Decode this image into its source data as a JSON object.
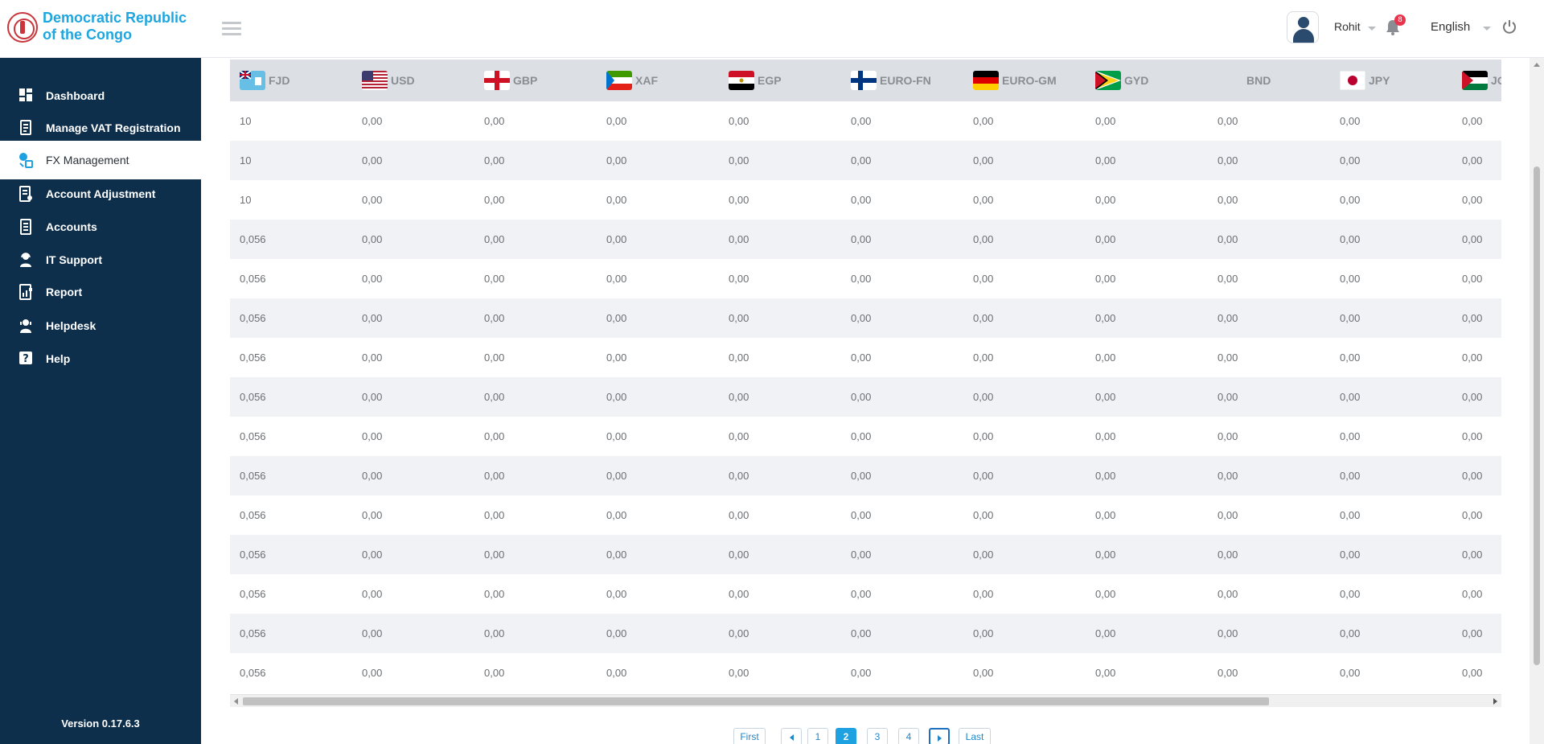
{
  "brand": {
    "name": "Democratic Republic of the Congo",
    "icon": "congo-emblem-icon"
  },
  "sidebar": {
    "items": [
      {
        "label": "Dashboard",
        "icon": "dashboard-icon",
        "active": false
      },
      {
        "label": "Manage VAT Registration",
        "icon": "vat-registration-icon",
        "active": false
      },
      {
        "label": "FX Management",
        "icon": "fx-management-icon",
        "active": true
      },
      {
        "label": "Account Adjustment",
        "icon": "account-adjustment-icon",
        "active": false
      },
      {
        "label": "Accounts",
        "icon": "accounts-icon",
        "active": false
      },
      {
        "label": "IT Support",
        "icon": "it-support-icon",
        "active": false
      },
      {
        "label": "Report",
        "icon": "report-icon",
        "active": false
      },
      {
        "label": "Helpdesk",
        "icon": "helpdesk-icon",
        "active": false
      },
      {
        "label": "Help",
        "icon": "help-icon",
        "active": false
      }
    ],
    "version": "Version 0.17.6.3"
  },
  "header": {
    "user_name": "Rohit",
    "notifications_count": "8",
    "language": "English"
  },
  "colors": {
    "sidebar_bg": "#0d2f4c",
    "brand_text": "#1ea6e0",
    "accent": "#1ea1e0",
    "table_header_bg": "#dcdfe3"
  },
  "table": {
    "columns": [
      "FJD",
      "USD",
      "GBP",
      "XAF",
      "EGP",
      "EURO-FN",
      "EURO-GM",
      "GYD",
      "BND",
      "JPY",
      "JO"
    ],
    "rows": [
      [
        "10",
        "0,00",
        "0,00",
        "0,00",
        "0,00",
        "0,00",
        "0,00",
        "0,00",
        "0,00",
        "0,00",
        "0,00"
      ],
      [
        "10",
        "0,00",
        "0,00",
        "0,00",
        "0,00",
        "0,00",
        "0,00",
        "0,00",
        "0,00",
        "0,00",
        "0,00"
      ],
      [
        "10",
        "0,00",
        "0,00",
        "0,00",
        "0,00",
        "0,00",
        "0,00",
        "0,00",
        "0,00",
        "0,00",
        "0,00"
      ],
      [
        "0,056",
        "0,00",
        "0,00",
        "0,00",
        "0,00",
        "0,00",
        "0,00",
        "0,00",
        "0,00",
        "0,00",
        "0,00"
      ],
      [
        "0,056",
        "0,00",
        "0,00",
        "0,00",
        "0,00",
        "0,00",
        "0,00",
        "0,00",
        "0,00",
        "0,00",
        "0,00"
      ],
      [
        "0,056",
        "0,00",
        "0,00",
        "0,00",
        "0,00",
        "0,00",
        "0,00",
        "0,00",
        "0,00",
        "0,00",
        "0,00"
      ],
      [
        "0,056",
        "0,00",
        "0,00",
        "0,00",
        "0,00",
        "0,00",
        "0,00",
        "0,00",
        "0,00",
        "0,00",
        "0,00"
      ],
      [
        "0,056",
        "0,00",
        "0,00",
        "0,00",
        "0,00",
        "0,00",
        "0,00",
        "0,00",
        "0,00",
        "0,00",
        "0,00"
      ],
      [
        "0,056",
        "0,00",
        "0,00",
        "0,00",
        "0,00",
        "0,00",
        "0,00",
        "0,00",
        "0,00",
        "0,00",
        "0,00"
      ],
      [
        "0,056",
        "0,00",
        "0,00",
        "0,00",
        "0,00",
        "0,00",
        "0,00",
        "0,00",
        "0,00",
        "0,00",
        "0,00"
      ],
      [
        "0,056",
        "0,00",
        "0,00",
        "0,00",
        "0,00",
        "0,00",
        "0,00",
        "0,00",
        "0,00",
        "0,00",
        "0,00"
      ],
      [
        "0,056",
        "0,00",
        "0,00",
        "0,00",
        "0,00",
        "0,00",
        "0,00",
        "0,00",
        "0,00",
        "0,00",
        "0,00"
      ],
      [
        "0,056",
        "0,00",
        "0,00",
        "0,00",
        "0,00",
        "0,00",
        "0,00",
        "0,00",
        "0,00",
        "0,00",
        "0,00"
      ],
      [
        "0,056",
        "0,00",
        "0,00",
        "0,00",
        "0,00",
        "0,00",
        "0,00",
        "0,00",
        "0,00",
        "0,00",
        "0,00"
      ],
      [
        "0,056",
        "0,00",
        "0,00",
        "0,00",
        "0,00",
        "0,00",
        "0,00",
        "0,00",
        "0,00",
        "0,00",
        "0,00"
      ]
    ]
  },
  "pagination": {
    "first": "First",
    "last": "Last",
    "pages": [
      "1",
      "2",
      "3",
      "4"
    ],
    "current": "2"
  }
}
